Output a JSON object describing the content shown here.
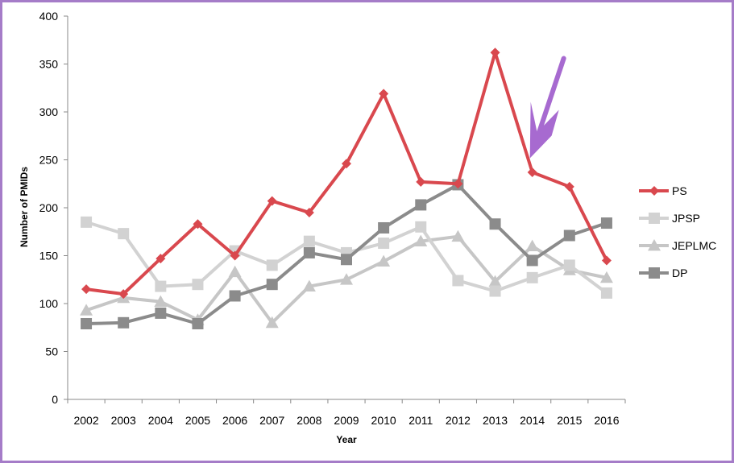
{
  "chart_data": {
    "type": "line",
    "title": "",
    "xlabel": "Year",
    "ylabel": "Number of PMIDs",
    "ylim": [
      0,
      400
    ],
    "yticks": [
      0,
      50,
      100,
      150,
      200,
      250,
      300,
      350,
      400
    ],
    "grid": false,
    "legend_position": "right",
    "categories": [
      "2002",
      "2003",
      "2004",
      "2005",
      "2006",
      "2007",
      "2008",
      "2009",
      "2010",
      "2011",
      "2012",
      "2013",
      "2014",
      "2015",
      "2016"
    ],
    "series": [
      {
        "name": "PS",
        "color": "#d9484e",
        "marker": "diamond",
        "width": 4,
        "values": [
          115,
          110,
          147,
          183,
          150,
          207,
          195,
          246,
          319,
          227,
          225,
          362,
          237,
          222,
          145
        ]
      },
      {
        "name": "JPSP",
        "color": "#d2d2d2",
        "marker": "square",
        "width": 4,
        "values": [
          185,
          173,
          118,
          120,
          155,
          140,
          165,
          153,
          163,
          180,
          124,
          113,
          127,
          140,
          111
        ]
      },
      {
        "name": "JEPLMC",
        "color": "#c6c6c6",
        "marker": "triangle",
        "width": 4,
        "values": [
          93,
          106,
          102,
          83,
          133,
          80,
          118,
          125,
          144,
          165,
          170,
          123,
          160,
          135,
          127
        ]
      },
      {
        "name": "DP",
        "color": "#8b8b8b",
        "marker": "square",
        "width": 4,
        "values": [
          79,
          80,
          90,
          79,
          108,
          120,
          153,
          146,
          179,
          203,
          224,
          183,
          145,
          171,
          184
        ]
      }
    ],
    "annotation": {
      "kind": "arrow",
      "color": "#a76ad0",
      "points_to_year": "2014",
      "points_to_value": 250
    }
  }
}
